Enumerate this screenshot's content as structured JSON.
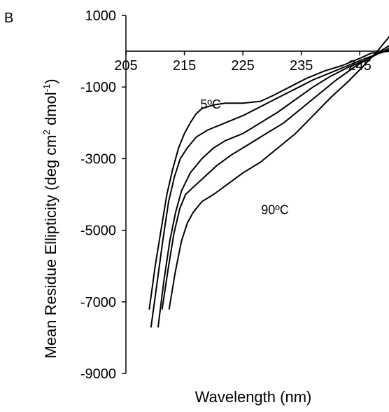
{
  "panel_label": "B",
  "chart_data": {
    "type": "line",
    "title": "",
    "xlabel": "Wavelength (nm)",
    "ylabel_parts": [
      "Mean Residue Ellipticity (deg cm",
      "2",
      " dmol",
      "-1",
      ")"
    ],
    "xlim": [
      205,
      250
    ],
    "ylim": [
      -9000,
      1000
    ],
    "x_ticks": [
      205,
      215,
      225,
      235,
      245
    ],
    "y_ticks": [
      1000,
      -1000,
      -3000,
      -5000,
      -7000,
      -9000
    ],
    "grid": false,
    "legend": "none",
    "series": [
      {
        "x": [
          209,
          210,
          211,
          212,
          213,
          214,
          215,
          216,
          217,
          218,
          219,
          220,
          222,
          225,
          228,
          230,
          233,
          236,
          239,
          242,
          245,
          247,
          250
        ],
        "y": [
          -7200,
          -6000,
          -5000,
          -4000,
          -3300,
          -2700,
          -2300,
          -2000,
          -1750,
          -1600,
          -1550,
          -1500,
          -1450,
          -1450,
          -1400,
          -1250,
          -1000,
          -750,
          -550,
          -400,
          -200,
          -50,
          0
        ]
      },
      {
        "x": [
          209.3,
          210.3,
          211.3,
          212.3,
          213.3,
          214.3,
          215.5,
          217,
          219,
          222,
          225,
          228,
          231,
          234,
          237,
          240,
          243,
          246,
          248,
          250
        ],
        "y": [
          -7700,
          -6500,
          -5300,
          -4200,
          -3500,
          -3000,
          -2700,
          -2400,
          -2200,
          -2000,
          -1800,
          -1550,
          -1300,
          -1050,
          -800,
          -600,
          -400,
          -200,
          -80,
          30
        ]
      },
      {
        "x": [
          210.5,
          211.5,
          212.5,
          213.5,
          214.5,
          216,
          218,
          220,
          222,
          225,
          228,
          231,
          234,
          237,
          240,
          243,
          246,
          248,
          250
        ],
        "y": [
          -7700,
          -6400,
          -5300,
          -4500,
          -3900,
          -3400,
          -3000,
          -2700,
          -2500,
          -2300,
          -2000,
          -1700,
          -1350,
          -1000,
          -700,
          -450,
          -250,
          -80,
          80
        ]
      },
      {
        "x": [
          211.2,
          212.2,
          213.2,
          214.2,
          215.2,
          216.5,
          218.5,
          220.5,
          223,
          226,
          229,
          232,
          235,
          238,
          241,
          244,
          247,
          250
        ],
        "y": [
          -7200,
          -6100,
          -5100,
          -4400,
          -4000,
          -3800,
          -3500,
          -3200,
          -2900,
          -2600,
          -2300,
          -2000,
          -1600,
          -1200,
          -800,
          -450,
          -150,
          150
        ]
      },
      {
        "x": [
          212.4,
          213.4,
          214.5,
          215.5,
          216.5,
          218,
          220,
          222.5,
          225,
          228,
          231,
          234,
          237,
          240,
          243,
          246,
          248,
          250
        ],
        "y": [
          -7200,
          -6200,
          -5300,
          -4800,
          -4500,
          -4200,
          -4000,
          -3700,
          -3400,
          -3100,
          -2700,
          -2300,
          -1800,
          -1300,
          -850,
          -350,
          0,
          400
        ]
      }
    ],
    "annotations": [
      {
        "text": "5ºC",
        "x": 219.5,
        "y": -1600
      },
      {
        "text": "90ºC",
        "x": 230.5,
        "y": -4550
      }
    ]
  }
}
